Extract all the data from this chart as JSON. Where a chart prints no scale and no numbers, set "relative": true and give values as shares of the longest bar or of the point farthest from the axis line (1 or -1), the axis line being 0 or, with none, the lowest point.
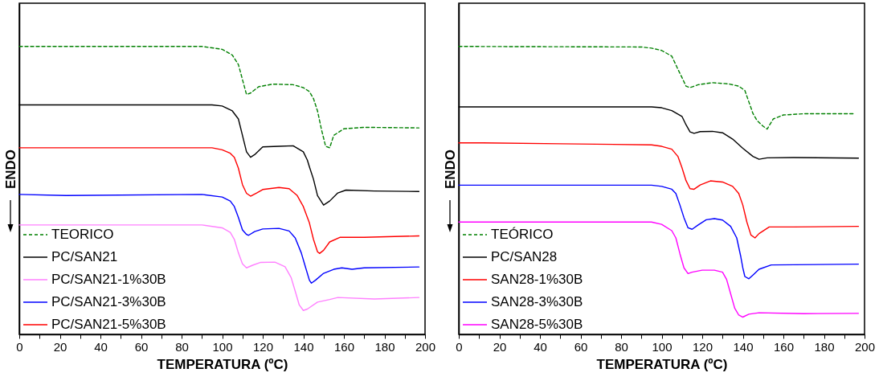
{
  "chart_data": [
    {
      "type": "line",
      "xlabel": "TEMPERATURA (ºC)",
      "ylabel": "ENDO",
      "relative": true,
      "legend": "bottom left",
      "grid": false,
      "xlim": [
        0,
        200
      ],
      "xticks": [
        0,
        {
          "value": 10,
          "label": null
        },
        20,
        {
          "value": 30,
          "label": null
        },
        40,
        {
          "value": 50,
          "label": null
        },
        60,
        {
          "value": 70,
          "label": null
        },
        80,
        {
          "value": 90,
          "label": null
        },
        100,
        {
          "value": 110,
          "label": null
        },
        120,
        {
          "value": 130,
          "label": null
        },
        140,
        {
          "value": 150,
          "label": null
        },
        160,
        {
          "value": 170,
          "label": null
        },
        180,
        {
          "value": 190,
          "label": null
        },
        200
      ],
      "series": [
        {
          "name": "TEORICO",
          "color": "#008000",
          "line_style": "dashed",
          "x": [
            0,
            90,
            100,
            105,
            108,
            110,
            112,
            114,
            118,
            125,
            135,
            140,
            143,
            145,
            147,
            149,
            151,
            153,
            155,
            160,
            170,
            197
          ],
          "values": [
            1.0,
            1.0,
            0.99,
            0.97,
            0.937,
            0.885,
            0.833,
            0.838,
            0.86,
            0.869,
            0.867,
            0.857,
            0.843,
            0.819,
            0.776,
            0.71,
            0.653,
            0.648,
            0.691,
            0.714,
            0.719,
            0.717
          ]
        },
        {
          "name": "PC/SAN21",
          "color": "#000000",
          "line_style": "solid",
          "x": [
            0,
            95,
            100,
            105,
            108,
            110,
            112,
            114,
            116,
            120,
            128,
            135,
            140,
            142,
            143,
            145,
            147,
            150,
            153,
            157,
            161,
            175,
            197
          ],
          "values": [
            0.797,
            0.797,
            0.793,
            0.776,
            0.748,
            0.691,
            0.634,
            0.615,
            0.624,
            0.651,
            0.653,
            0.655,
            0.634,
            0.605,
            0.582,
            0.539,
            0.482,
            0.449,
            0.463,
            0.491,
            0.501,
            0.498,
            0.496
          ]
        },
        {
          "name": "PC/SAN21-1%30B",
          "color": "#ff80ff",
          "line_style": "solid",
          "x": [
            0,
            90,
            100,
            104,
            106,
            108,
            110,
            112,
            115,
            119,
            126,
            131,
            134,
            136,
            138,
            140,
            142,
            147,
            153,
            157,
            175,
            197
          ],
          "values": [
            0.38,
            0.38,
            0.37,
            0.354,
            0.33,
            0.283,
            0.245,
            0.231,
            0.24,
            0.25,
            0.251,
            0.235,
            0.197,
            0.15,
            0.102,
            0.083,
            0.088,
            0.112,
            0.121,
            0.128,
            0.123,
            0.128
          ]
        },
        {
          "name": "PC/SAN21-3%30B",
          "color": "#0000ff",
          "line_style": "solid",
          "x": [
            0,
            23,
            90,
            100,
            104,
            106,
            108,
            110,
            112,
            113,
            116,
            120,
            128,
            133,
            136,
            139,
            141,
            143,
            144,
            146,
            150,
            155,
            159,
            164,
            170,
            197
          ],
          "values": [
            0.486,
            0.482,
            0.486,
            0.477,
            0.463,
            0.444,
            0.406,
            0.363,
            0.347,
            0.344,
            0.357,
            0.366,
            0.368,
            0.359,
            0.335,
            0.283,
            0.235,
            0.188,
            0.178,
            0.188,
            0.212,
            0.226,
            0.231,
            0.226,
            0.231,
            0.234
          ]
        },
        {
          "name": "PC/SAN21-5%30B",
          "color": "#ff0000",
          "line_style": "solid",
          "x": [
            0,
            95,
            100,
            104,
            106,
            108,
            110,
            112,
            114,
            117,
            120,
            128,
            133,
            137,
            140,
            143,
            145,
            147,
            148,
            150,
            153,
            158,
            170,
            197
          ],
          "values": [
            0.648,
            0.648,
            0.641,
            0.629,
            0.615,
            0.577,
            0.52,
            0.49,
            0.48,
            0.491,
            0.503,
            0.51,
            0.506,
            0.482,
            0.444,
            0.387,
            0.33,
            0.287,
            0.281,
            0.292,
            0.321,
            0.337,
            0.337,
            0.342
          ]
        }
      ]
    },
    {
      "type": "line",
      "xlabel": "TEMPERATURA (ºC)",
      "ylabel": "ENDO",
      "relative": true,
      "legend": "bottom left",
      "grid": false,
      "xlim": [
        0,
        200
      ],
      "xticks": [
        0,
        {
          "value": 10,
          "label": null
        },
        20,
        {
          "value": 30,
          "label": null
        },
        40,
        {
          "value": 50,
          "label": null
        },
        60,
        {
          "value": 70,
          "label": null
        },
        80,
        {
          "value": 90,
          "label": null
        },
        100,
        {
          "value": 110,
          "label": null
        },
        120,
        {
          "value": 130,
          "label": null
        },
        140,
        {
          "value": 150,
          "label": null
        },
        160,
        {
          "value": 170,
          "label": null
        },
        180,
        {
          "value": 190,
          "label": null
        },
        200
      ],
      "series": [
        {
          "name": "TEÓRICO",
          "color": "#008000",
          "line_style": "dashed",
          "x": [
            0,
            90,
            95,
            100,
            105,
            108,
            110,
            112,
            114,
            118,
            125,
            133,
            138,
            141,
            143,
            145,
            147,
            150,
            152,
            155,
            160,
            170,
            195
          ],
          "values": [
            1.0,
            0.998,
            0.994,
            0.986,
            0.966,
            0.921,
            0.892,
            0.862,
            0.857,
            0.867,
            0.874,
            0.87,
            0.862,
            0.847,
            0.807,
            0.767,
            0.743,
            0.723,
            0.713,
            0.748,
            0.762,
            0.766,
            0.766
          ]
        },
        {
          "name": "PC/SAN28",
          "color": "#000000",
          "line_style": "solid",
          "x": [
            0,
            95,
            100,
            105,
            110,
            112,
            114,
            116,
            119,
            125,
            130,
            135,
            140,
            145,
            148,
            152,
            165,
            197
          ],
          "values": [
            0.79,
            0.79,
            0.787,
            0.777,
            0.757,
            0.728,
            0.703,
            0.698,
            0.704,
            0.705,
            0.7,
            0.678,
            0.646,
            0.618,
            0.608,
            0.613,
            0.614,
            0.612
          ]
        },
        {
          "name": "SAN28-1%30B",
          "color": "#ff0000",
          "line_style": "solid",
          "x": [
            0,
            12,
            50,
            95,
            100,
            105,
            108,
            110,
            112,
            114,
            116,
            119,
            124,
            130,
            135,
            138,
            140,
            142,
            144,
            146,
            148,
            153,
            165,
            197
          ],
          "values": [
            0.665,
            0.665,
            0.662,
            0.658,
            0.653,
            0.643,
            0.618,
            0.579,
            0.534,
            0.506,
            0.504,
            0.519,
            0.533,
            0.529,
            0.514,
            0.489,
            0.449,
            0.39,
            0.345,
            0.335,
            0.35,
            0.373,
            0.373,
            0.375
          ]
        },
        {
          "name": "SAN28-3%30B",
          "color": "#0000ff",
          "line_style": "solid",
          "x": [
            0,
            95,
            100,
            105,
            107,
            109,
            111,
            113,
            115,
            118,
            122,
            126,
            130,
            134,
            137,
            139,
            140,
            141,
            143,
            145,
            148,
            154,
            197
          ],
          "values": [
            0.518,
            0.518,
            0.514,
            0.504,
            0.489,
            0.449,
            0.405,
            0.37,
            0.365,
            0.38,
            0.398,
            0.402,
            0.397,
            0.375,
            0.335,
            0.27,
            0.231,
            0.201,
            0.193,
            0.206,
            0.226,
            0.241,
            0.244
          ]
        },
        {
          "name": "SAN28-5%30B",
          "color": "#ff00ff",
          "line_style": "solid",
          "x": [
            0,
            95,
            100,
            105,
            107,
            109,
            111,
            113,
            115,
            120,
            126,
            130,
            132,
            134,
            136,
            138,
            140,
            143,
            148,
            170,
            197
          ],
          "values": [
            0.39,
            0.39,
            0.382,
            0.36,
            0.335,
            0.28,
            0.231,
            0.211,
            0.216,
            0.223,
            0.223,
            0.216,
            0.191,
            0.141,
            0.091,
            0.067,
            0.06,
            0.07,
            0.075,
            0.072,
            0.073
          ]
        }
      ]
    }
  ]
}
